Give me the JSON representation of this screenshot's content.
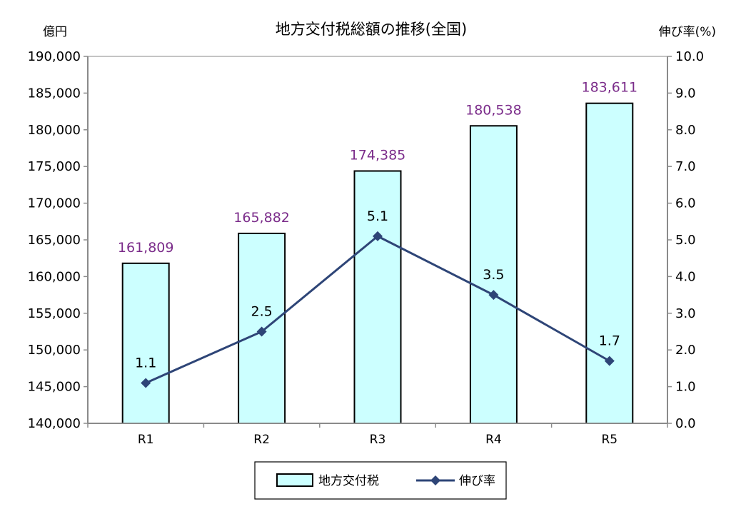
{
  "chart_data": {
    "type": "bar",
    "title": "地方交付税総額の推移(全国)",
    "left_axis_unit": "億円",
    "right_axis_unit": "伸び率(%)",
    "categories": [
      "R1",
      "R2",
      "R3",
      "R4",
      "R5"
    ],
    "series": [
      {
        "name": "地方交付税",
        "type": "bar",
        "axis": "left",
        "values": [
          161809,
          165882,
          174385,
          180538,
          183611
        ],
        "labels": [
          "161,809",
          "165,882",
          "174,385",
          "180,538",
          "183,611"
        ],
        "color": "#ccffff",
        "label_color": "#7b2c8a"
      },
      {
        "name": "伸び率",
        "type": "line",
        "axis": "right",
        "values": [
          1.1,
          2.5,
          5.1,
          3.5,
          1.7
        ],
        "labels": [
          "1.1",
          "2.5",
          "5.1",
          "3.5",
          "1.7"
        ],
        "color": "#2e4577",
        "marker": "diamond"
      }
    ],
    "y_left": {
      "ylim": [
        140000,
        190000
      ],
      "ticks": [
        140000,
        145000,
        150000,
        155000,
        160000,
        165000,
        170000,
        175000,
        180000,
        185000,
        190000
      ],
      "tick_labels": [
        "140,000",
        "145,000",
        "150,000",
        "155,000",
        "160,000",
        "165,000",
        "170,000",
        "175,000",
        "180,000",
        "185,000",
        "190,000"
      ]
    },
    "y_right": {
      "ylim": [
        0,
        10
      ],
      "ticks": [
        0,
        1,
        2,
        3,
        4,
        5,
        6,
        7,
        8,
        9,
        10
      ],
      "tick_labels": [
        "0.0",
        "1.0",
        "2.0",
        "3.0",
        "4.0",
        "5.0",
        "6.0",
        "7.0",
        "8.0",
        "9.0",
        "10.0"
      ]
    },
    "grid": false,
    "legend_position": "bottom-center"
  }
}
